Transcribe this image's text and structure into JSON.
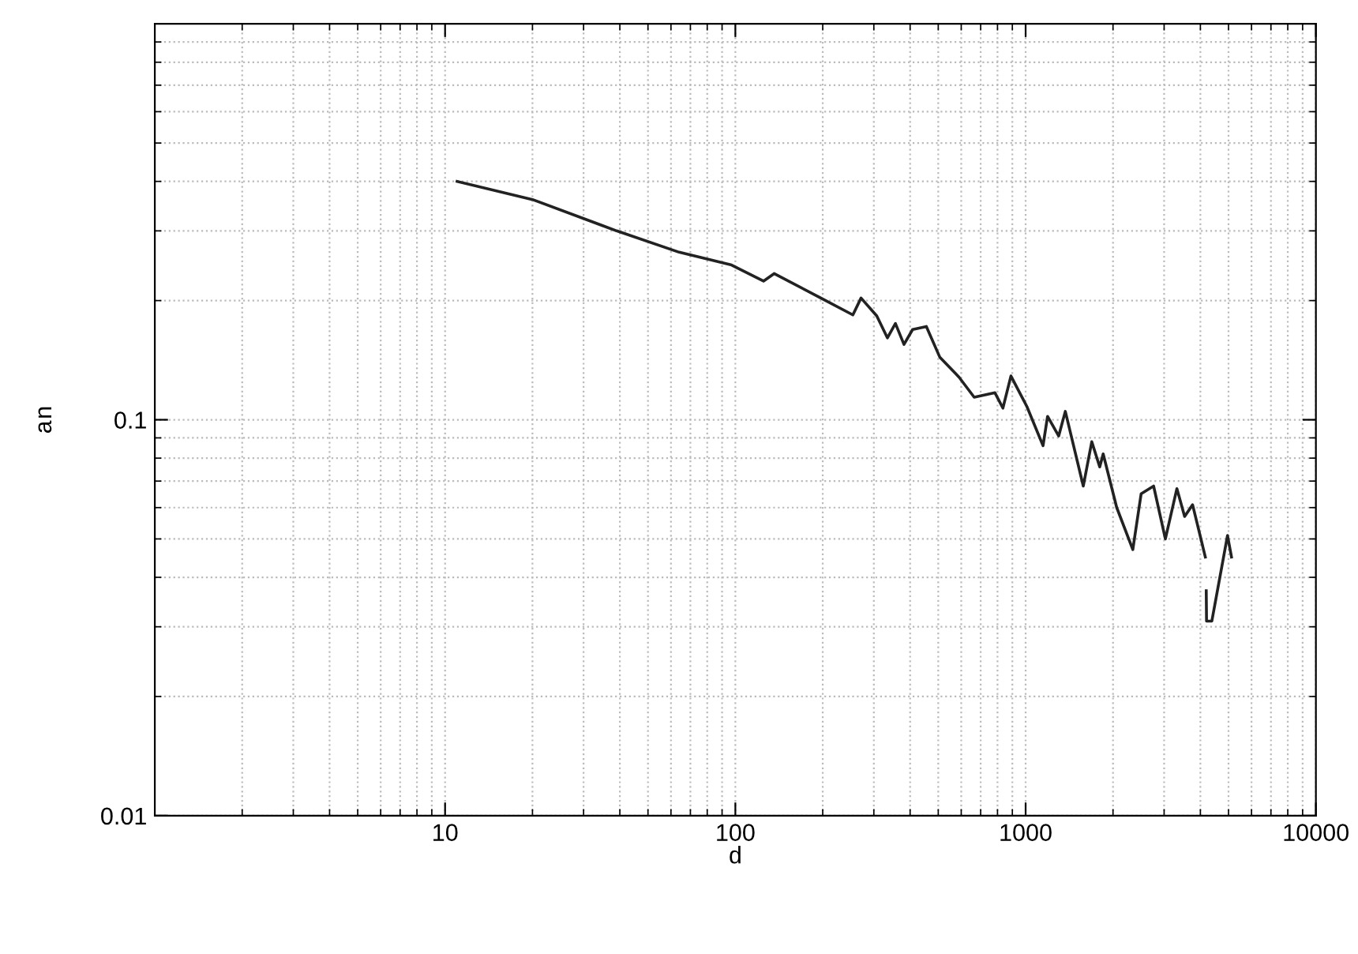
{
  "chart_data": {
    "type": "line",
    "xlabel": "d",
    "ylabel": "an",
    "log": "xy",
    "grid": true,
    "xlim": [
      1,
      10000
    ],
    "ylim": [
      0.01,
      1
    ],
    "xticks": [
      10,
      100,
      1000,
      10000
    ],
    "yticks": [
      0.01,
      0.1
    ],
    "series": [
      {
        "color": "#222222",
        "x": [
          11,
          20,
          39,
          64,
          97,
          125,
          136,
          197,
          254,
          271,
          307,
          334,
          356,
          381,
          408,
          455,
          506,
          573,
          590,
          665,
          784,
          835,
          890,
          1010,
          1148,
          1190,
          1300,
          1370,
          1580,
          1690,
          1800,
          1850,
          2060,
          2340,
          2500,
          2760,
          3030,
          3320,
          3530,
          3760,
          4160,
          4180,
          4190,
          4200,
          4380,
          4960,
          5120
        ],
        "values": [
          0.4,
          0.36,
          0.3,
          0.265,
          0.246,
          0.224,
          0.234,
          0.203,
          0.184,
          0.203,
          0.183,
          0.161,
          0.175,
          0.155,
          0.169,
          0.172,
          0.144,
          0.131,
          0.128,
          0.114,
          0.117,
          0.107,
          0.129,
          0.108,
          0.086,
          0.102,
          0.091,
          0.105,
          0.068,
          0.088,
          0.076,
          0.082,
          0.06,
          0.047,
          0.065,
          0.068,
          0.05,
          0.067,
          0.057,
          0.061,
          0.045,
          null,
          0.037,
          0.031,
          0.031,
          0.051,
          0.045
        ]
      }
    ]
  }
}
